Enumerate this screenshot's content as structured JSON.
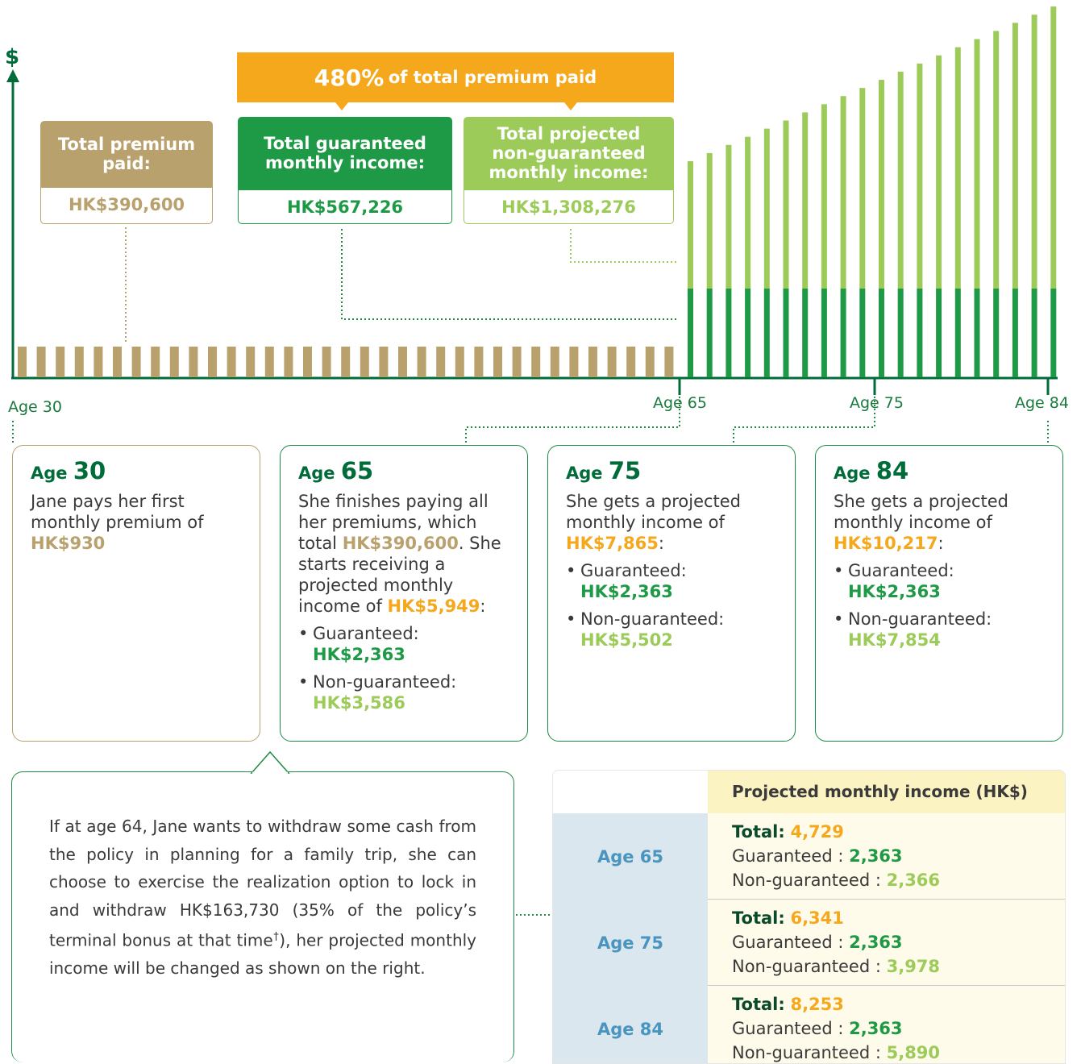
{
  "axis_symbol": "$",
  "banner": {
    "percent": "480%",
    "text": "of total premium paid"
  },
  "summary": [
    {
      "label": "Total premium paid:",
      "value": "HK$390,600"
    },
    {
      "label": "Total guaranteed monthly income:",
      "value": "HK$567,226"
    },
    {
      "label": "Total projected non-guaranteed monthly income:",
      "value": "HK$1,308,276"
    }
  ],
  "age_labels": [
    "Age 30",
    "Age 65",
    "Age 75",
    "Age 84"
  ],
  "cards": [
    {
      "age_prefix": "Age",
      "age": "30",
      "paragraphs": [
        [
          {
            "text": "Jane pays her first monthly premium of "
          },
          {
            "text": "HK$930",
            "color": "#b8a16d"
          }
        ]
      ],
      "bullets": []
    },
    {
      "age_prefix": "Age",
      "age": "65",
      "paragraphs": [
        [
          {
            "text": "She finishes paying all her premiums, which total "
          },
          {
            "text": "HK$390,600",
            "color": "#b8a16d"
          },
          {
            "text": ". She starts receiving a projected monthly income of "
          },
          {
            "text": "HK$5,949",
            "color": "#f5a81c"
          },
          {
            "text": ":"
          }
        ]
      ],
      "bullets": [
        {
          "label": "Guaranteed:",
          "value": "HK$2,363",
          "color": "#1e9a46"
        },
        {
          "label": "Non-guaranteed:",
          "value": "HK$3,586",
          "color": "#9ccb5a"
        }
      ]
    },
    {
      "age_prefix": "Age",
      "age": "75",
      "paragraphs": [
        [
          {
            "text": "She gets a projected monthly income of "
          },
          {
            "text": "HK$7,865",
            "color": "#f5a81c"
          },
          {
            "text": ":"
          }
        ]
      ],
      "bullets": [
        {
          "label": "Guaranteed:",
          "value": "HK$2,363",
          "color": "#1e9a46"
        },
        {
          "label": "Non-guaranteed:",
          "value": "HK$5,502",
          "color": "#9ccb5a"
        }
      ]
    },
    {
      "age_prefix": "Age",
      "age": "84",
      "paragraphs": [
        [
          {
            "text": "She gets a projected monthly income of "
          },
          {
            "text": "HK$10,217",
            "color": "#f5a81c"
          },
          {
            "text": ":"
          }
        ]
      ],
      "bullets": [
        {
          "label": "Guaranteed:",
          "value": "HK$2,363",
          "color": "#1e9a46"
        },
        {
          "label": "Non-guaranteed:",
          "value": "HK$7,854",
          "color": "#9ccb5a"
        }
      ]
    }
  ],
  "note": {
    "text": "If at age 64, Jane wants to withdraw some cash from the policy in planning for a family trip, she can choose to exercise the realization option to lock in and withdraw HK$163,730 (35% of the policy’s terminal bonus at that time",
    "sup": "†",
    "text_after": "), her projected monthly income will be changed as shown on the right."
  },
  "table": {
    "header": "Projected monthly income (HK$)",
    "rows": [
      {
        "age": "Age 65",
        "total_label": "Total:",
        "total": "4,729",
        "guaranteed_label": "Guaranteed :",
        "guaranteed": "2,363",
        "non_label": "Non-guaranteed :",
        "non": "2,366"
      },
      {
        "age": "Age 75",
        "total_label": "Total:",
        "total": "6,341",
        "guaranteed_label": "Guaranteed :",
        "guaranteed": "2,363",
        "non_label": "Non-guaranteed :",
        "non": "3,978"
      },
      {
        "age": "Age 84",
        "total_label": "Total:",
        "total": "8,253",
        "guaranteed_label": "Guaranteed :",
        "guaranteed": "2,363",
        "non_label": "Non-guaranteed :",
        "non": "5,890"
      }
    ]
  }
}
